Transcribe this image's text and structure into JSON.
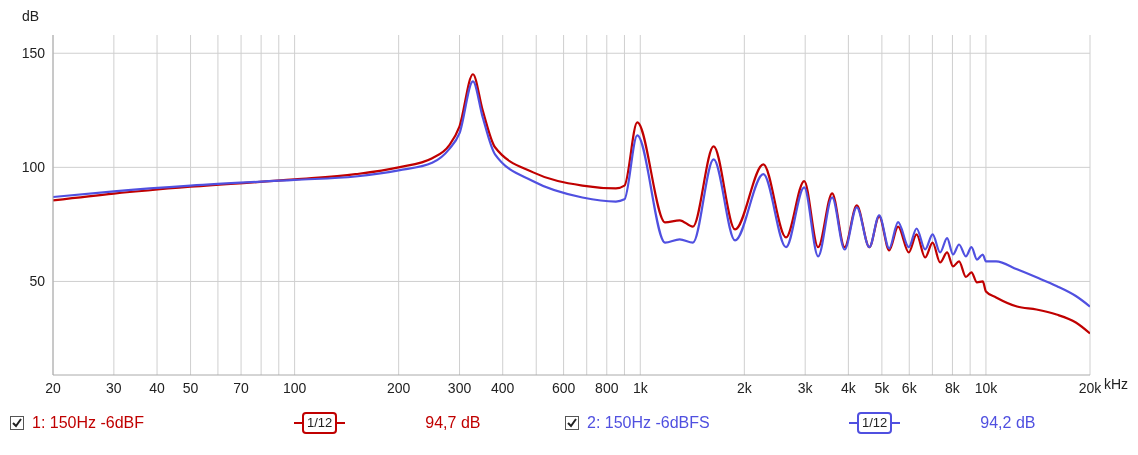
{
  "chart_data": {
    "type": "line",
    "ylabel": "dB",
    "legend": "bottom",
    "grid": true,
    "marker": "none",
    "line_style": "solid",
    "log": "x",
    "xlim": [
      20,
      20000
    ],
    "ylim": [
      9,
      158
    ],
    "yticks": [
      50,
      100,
      150
    ],
    "xticks": [
      20,
      30,
      40,
      50,
      {
        "value": 60,
        "label": null
      },
      70,
      {
        "value": 80,
        "label": null
      },
      {
        "value": 90,
        "label": null
      },
      100,
      200,
      300,
      400,
      {
        "value": 500,
        "label": null
      },
      600,
      {
        "value": 700,
        "label": null
      },
      800,
      {
        "value": 900,
        "label": null
      },
      {
        "value": 1000,
        "label": "1k"
      },
      {
        "value": 2000,
        "label": "2k"
      },
      {
        "value": 3000,
        "label": "3k"
      },
      {
        "value": 4000,
        "label": "4k"
      },
      {
        "value": 5000,
        "label": "5k"
      },
      {
        "value": 6000,
        "label": "6k"
      },
      {
        "value": 7000,
        "label": null
      },
      {
        "value": 8000,
        "label": "8k"
      },
      {
        "value": 9000,
        "label": null
      },
      {
        "value": 10000,
        "label": "10k"
      },
      {
        "value": 20000,
        "label": "20k"
      }
    ],
    "xlabel": "kHz",
    "x": [
      20,
      30,
      50,
      100,
      150,
      200,
      250,
      280,
      300,
      328,
      350,
      380,
      490,
      680,
      850,
      900,
      980,
      1180,
      1300,
      1420,
      1630,
      1880,
      2270,
      2640,
      2980,
      3270,
      3590,
      3900,
      4230,
      4600,
      4910,
      5250,
      5570,
      5980,
      6300,
      6670,
      7010,
      7370,
      7720,
      8030,
      8360,
      8750,
      9080,
      9420,
      9790,
      10000,
      10700,
      12300,
      14000,
      16000,
      18200,
      20000
    ],
    "series": [
      {
        "name": "1: 150Hz -6dBF",
        "color": "#c00000",
        "values": [
          85.5,
          88.5,
          91.5,
          94.7,
          97,
          100,
          104,
          109.6,
          118,
          140.8,
          125,
          108.8,
          97.8,
          92,
          90.8,
          92,
          119.7,
          75.9,
          76.8,
          74,
          109.2,
          72.8,
          101.3,
          69.3,
          94,
          65,
          88.6,
          65,
          83.3,
          65,
          78.5,
          63.6,
          74,
          62.7,
          70.6,
          60.5,
          67,
          58.3,
          62.7,
          56.6,
          58.8,
          52,
          54,
          49.6,
          50,
          45.6,
          43,
          39,
          37.7,
          35.5,
          32,
          27.2
        ]
      },
      {
        "name": "2: 150Hz -6dBFS",
        "color": "#5050e0",
        "values": [
          87,
          89.5,
          92,
          94.5,
          96,
          98.7,
          102,
          108,
          115,
          137.7,
          122,
          105.7,
          93.9,
          86.8,
          85,
          86,
          114,
          67,
          68.4,
          67,
          103.5,
          68,
          97,
          65,
          91.2,
          61,
          86.8,
          64,
          82.5,
          65,
          79,
          64.5,
          76,
          65,
          73.2,
          64,
          70.6,
          62.7,
          69,
          61.8,
          66.2,
          61,
          65,
          59.6,
          61.8,
          58.8,
          58.8,
          55.3,
          51.8,
          48,
          43.6,
          39
        ]
      }
    ],
    "annotations": [
      "1/12",
      "94,7 dB",
      "1/12",
      "94,2 dB"
    ]
  }
}
